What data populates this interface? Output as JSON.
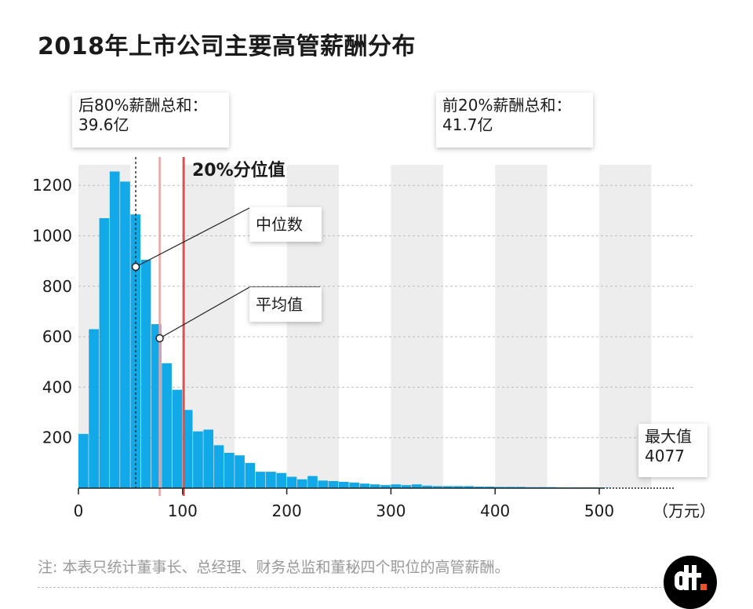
{
  "title": "2018年上市公司主要高管薪酬分布",
  "callouts": {
    "bottom80_line1": "后80%薪酬总和：",
    "bottom80_line2": "39.6亿",
    "top20_line1": "前20%薪酬总和：",
    "top20_line2": "41.7亿",
    "percentile20": "20%分位值",
    "median": "中位数",
    "mean": "平均值",
    "max_line1": "最大值",
    "max_line2": "4077"
  },
  "note": "注: 本表只统计董事长、总经理、财务总监和董秘四个职位的高管薪酬。",
  "chart_data": {
    "type": "bar",
    "title": "2018年上市公司主要高管薪酬分布",
    "xlabel": "（万元）",
    "ylabel": "",
    "x_unit": "万元",
    "bin_width": 10,
    "bin_starts": [
      0,
      10,
      20,
      30,
      40,
      50,
      60,
      70,
      80,
      90,
      100,
      110,
      120,
      130,
      140,
      150,
      160,
      170,
      180,
      190,
      200,
      210,
      220,
      230,
      240,
      250,
      260,
      270,
      280,
      290,
      300,
      310,
      320,
      330,
      340,
      350,
      360,
      370,
      380,
      390,
      400,
      410,
      420,
      430,
      440,
      450,
      460,
      470,
      480,
      490,
      500
    ],
    "values": [
      215,
      630,
      1070,
      1255,
      1215,
      1085,
      905,
      650,
      495,
      390,
      310,
      225,
      232,
      170,
      140,
      130,
      100,
      65,
      65,
      60,
      45,
      35,
      48,
      30,
      28,
      25,
      22,
      18,
      15,
      12,
      15,
      12,
      15,
      10,
      8,
      8,
      8,
      8,
      6,
      6,
      5,
      5,
      5,
      4,
      4,
      4,
      3,
      3,
      3,
      3,
      2
    ],
    "xlim": [
      0,
      550
    ],
    "ylim": [
      0,
      1300
    ],
    "xticks": [
      0,
      100,
      200,
      300,
      400,
      500
    ],
    "yticks": [
      200,
      400,
      600,
      800,
      1000,
      1200
    ],
    "max_value": 4077,
    "markers": {
      "median": 55,
      "mean": 78,
      "percentile_20": 101
    },
    "bar_color": "#12a9e8",
    "median_color": "#333333",
    "mean_color": "#f0a3a3",
    "percentile_color": "#d9534f",
    "band_color": "#ededed"
  }
}
